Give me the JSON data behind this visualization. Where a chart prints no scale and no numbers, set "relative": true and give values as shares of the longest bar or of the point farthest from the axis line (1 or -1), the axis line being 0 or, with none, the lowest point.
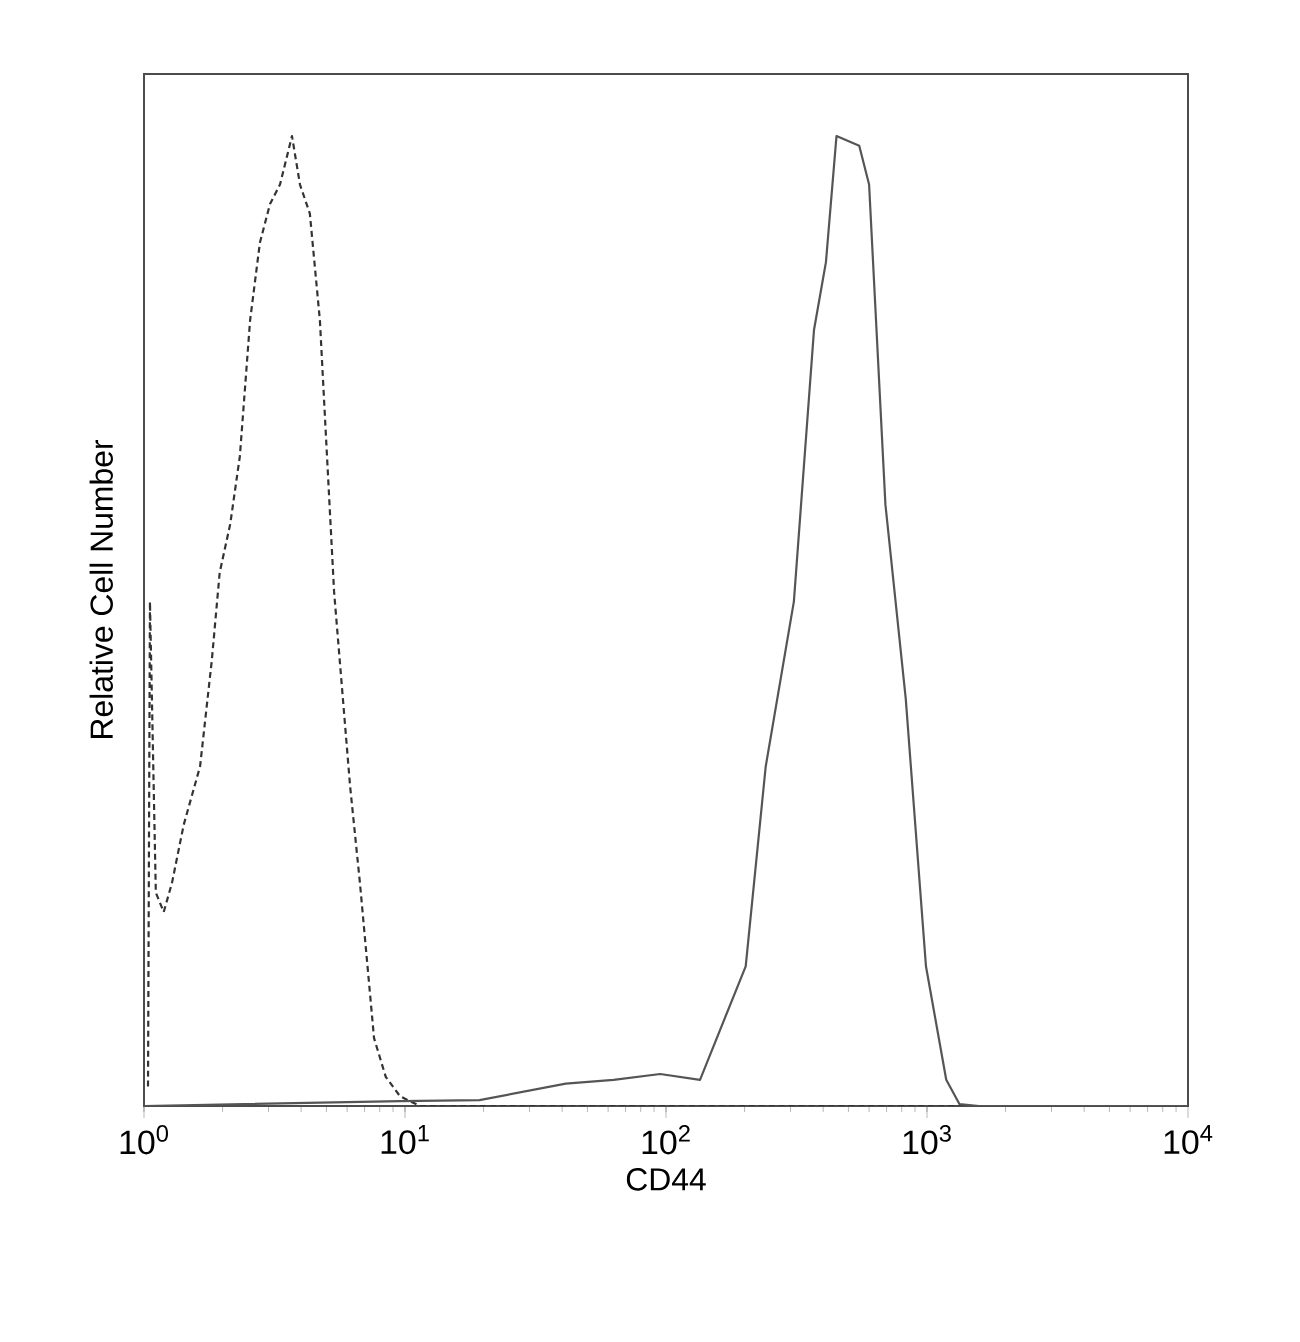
{
  "chart_data": {
    "type": "line",
    "relative": true,
    "log": "x",
    "xlabel": "CD44",
    "ylabel": "Relative Cell Number",
    "xlim": [
      1,
      10000
    ],
    "xticks": [
      {
        "value": 1,
        "label": "10$^{0}$"
      },
      {
        "value": 10,
        "label": "10$^{1}$"
      },
      {
        "value": 100,
        "label": "10$^{2}$"
      },
      {
        "value": 1000,
        "label": "10$^{3}$"
      },
      {
        "value": 10000,
        "label": "10$^{4}$"
      }
    ],
    "tick_labels": "x",
    "grid": false,
    "marker": "none",
    "series": [
      {
        "color": "#333333",
        "line_style": "dashed",
        "x": [
          1.036,
          1.054,
          1.11,
          1.19,
          1.28,
          1.42,
          1.64,
          1.82,
          1.95,
          2.14,
          2.33,
          2.55,
          2.78,
          3.04,
          3.32,
          3.69,
          3.96,
          4.32,
          4.72,
          5.35,
          6.16,
          6.72,
          7.61,
          8.44,
          9.57,
          11.4,
          10000
        ],
        "values": [
          0.02,
          0.52,
          0.22,
          0.2,
          0.23,
          0.29,
          0.35,
          0.46,
          0.55,
          0.6,
          0.67,
          0.81,
          0.89,
          0.93,
          0.95,
          1.0,
          0.95,
          0.92,
          0.81,
          0.53,
          0.33,
          0.23,
          0.07,
          0.03,
          0.01,
          0,
          0
        ]
      },
      {
        "color": "#555555",
        "line_style": "solid",
        "x": [
          1,
          9.6,
          19.3,
          41.3,
          63,
          95,
          135,
          202,
          241,
          309,
          369,
          410,
          450,
          550,
          600,
          693,
          829,
          991,
          1185,
          1331,
          1582,
          10000
        ],
        "values": [
          0,
          0.005,
          0.006,
          0.023,
          0.027,
          0.033,
          0.027,
          0.144,
          0.35,
          0.52,
          0.8,
          0.87,
          1.0,
          0.99,
          0.95,
          0.62,
          0.42,
          0.144,
          0.027,
          0.002,
          0,
          0
        ]
      }
    ]
  }
}
